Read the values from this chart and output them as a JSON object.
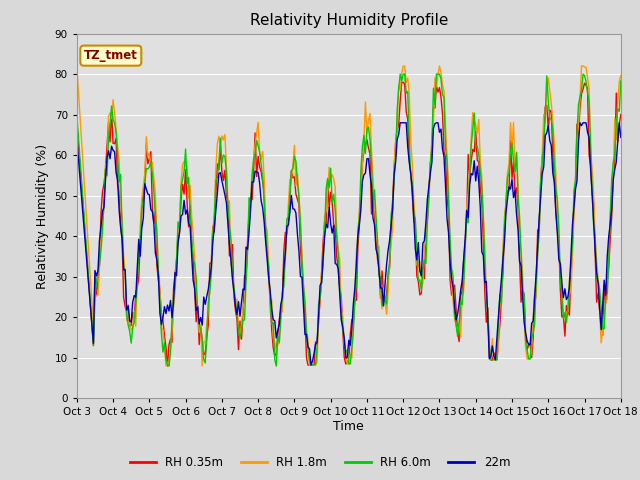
{
  "title": "Relativity Humidity Profile",
  "ylabel": "Relativity Humidity (%)",
  "xlabel": "Time",
  "ylim": [
    0,
    90
  ],
  "yticks": [
    0,
    10,
    20,
    30,
    40,
    50,
    60,
    70,
    80,
    90
  ],
  "fig_bg_color": "#d9d9d9",
  "plot_bg_color": "#e0e0e0",
  "annotation_text": "TZ_tmet",
  "annotation_bg": "#ffffcc",
  "annotation_border": "#cc8800",
  "annotation_text_color": "#880000",
  "series_colors": [
    "#ff0000",
    "#ff9900",
    "#00cc00",
    "#0000bb"
  ],
  "series_labels": [
    "RH 0.35m",
    "RH 1.8m",
    "RH 6.0m",
    "22m"
  ],
  "xtick_labels": [
    "Oct 3",
    "Oct 4",
    "Oct 5",
    "Oct 6",
    "Oct 7",
    "Oct 8",
    "Oct 9",
    "Oct 10",
    "Oct 11",
    "Oct 12",
    "Oct 13",
    "Oct 14",
    "Oct 15",
    "Oct 16",
    "Oct 17",
    "Oct 18"
  ],
  "grid_color": "#ffffff",
  "linewidth": 1.0,
  "figwidth": 6.4,
  "figheight": 4.8,
  "dpi": 100
}
